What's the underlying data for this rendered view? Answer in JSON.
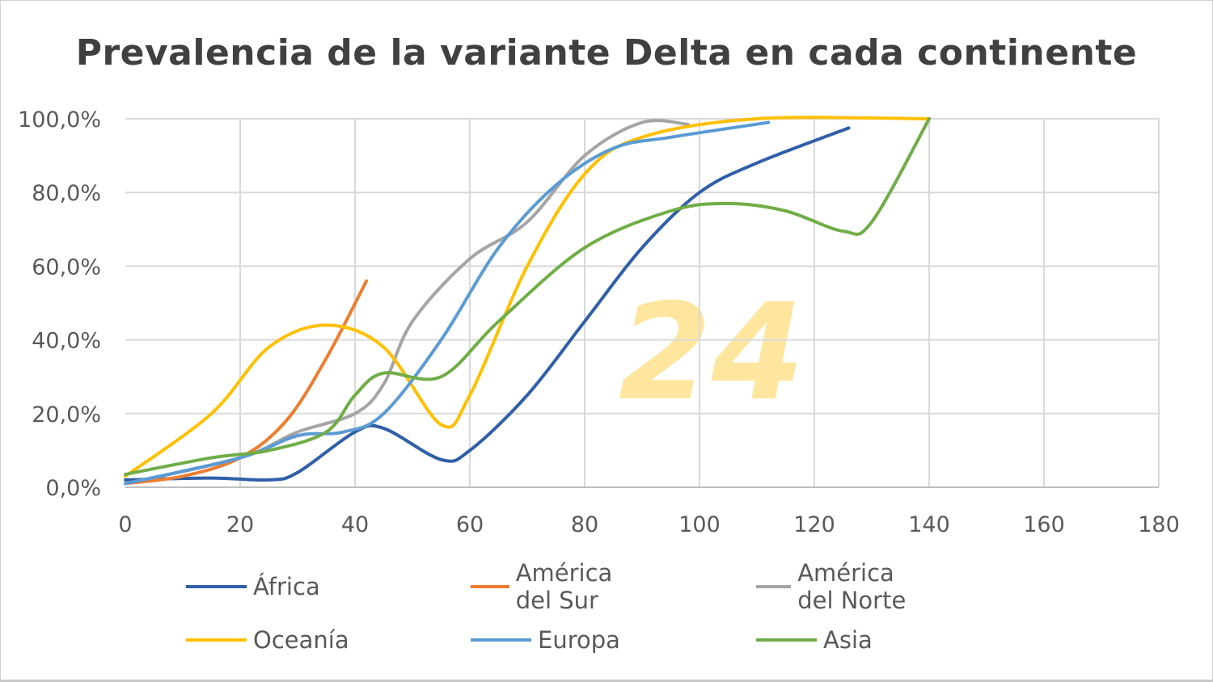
{
  "watermark": "24",
  "chart_data": {
    "type": "line",
    "title": "Prevalencia de la variante Delta en cada continente",
    "xlabel": "",
    "ylabel": "",
    "xlim": [
      0,
      180
    ],
    "ylim": [
      0,
      100
    ],
    "x_ticks": [
      "0",
      "20",
      "40",
      "60",
      "80",
      "100",
      "120",
      "140",
      "160",
      "180"
    ],
    "y_ticks": [
      "0,0%",
      "20,0%",
      "40,0%",
      "60,0%",
      "80,0%",
      "100,0%"
    ],
    "grid": true,
    "legend_position": "bottom",
    "series": [
      {
        "name": "África",
        "color": "#2F5FA8",
        "points": [
          [
            0,
            2
          ],
          [
            15,
            2.5
          ],
          [
            25,
            2
          ],
          [
            30,
            4
          ],
          [
            40,
            15
          ],
          [
            45,
            16
          ],
          [
            55,
            7.5
          ],
          [
            60,
            10
          ],
          [
            70,
            25
          ],
          [
            80,
            45
          ],
          [
            90,
            65
          ],
          [
            100,
            80
          ],
          [
            110,
            88
          ],
          [
            126,
            97.5
          ]
        ]
      },
      {
        "name": "América del Sur",
        "color": "#ED7D31",
        "points": [
          [
            0,
            1
          ],
          [
            10,
            3
          ],
          [
            20,
            8
          ],
          [
            28,
            18
          ],
          [
            35,
            35
          ],
          [
            42,
            56
          ]
        ]
      },
      {
        "name": "América del Norte",
        "color": "#A5A5A5",
        "points": [
          [
            0,
            1
          ],
          [
            20,
            8
          ],
          [
            30,
            15
          ],
          [
            40,
            20
          ],
          [
            45,
            28
          ],
          [
            50,
            45
          ],
          [
            60,
            62
          ],
          [
            70,
            72
          ],
          [
            80,
            90
          ],
          [
            90,
            99
          ],
          [
            98,
            98.5
          ]
        ]
      },
      {
        "name": "Oceanía",
        "color": "#FFC000",
        "points": [
          [
            0,
            3
          ],
          [
            15,
            20
          ],
          [
            25,
            38
          ],
          [
            35,
            44
          ],
          [
            45,
            38
          ],
          [
            55,
            17
          ],
          [
            60,
            25
          ],
          [
            70,
            60
          ],
          [
            80,
            85
          ],
          [
            90,
            95
          ],
          [
            110,
            100
          ],
          [
            140,
            100
          ]
        ]
      },
      {
        "name": "Europa",
        "color": "#5B9BD5",
        "points": [
          [
            0,
            1
          ],
          [
            20,
            8
          ],
          [
            30,
            14
          ],
          [
            38,
            15
          ],
          [
            45,
            20
          ],
          [
            55,
            40
          ],
          [
            65,
            65
          ],
          [
            75,
            82
          ],
          [
            85,
            92
          ],
          [
            95,
            95
          ],
          [
            112,
            99
          ]
        ]
      },
      {
        "name": "Asia",
        "color": "#70AD47",
        "points": [
          [
            0,
            3.5
          ],
          [
            15,
            8
          ],
          [
            25,
            10
          ],
          [
            35,
            15
          ],
          [
            40,
            25
          ],
          [
            45,
            31
          ],
          [
            55,
            30
          ],
          [
            65,
            45
          ],
          [
            80,
            65
          ],
          [
            95,
            75
          ],
          [
            105,
            77
          ],
          [
            115,
            75
          ],
          [
            125,
            69.5
          ],
          [
            130,
            72
          ],
          [
            140,
            100
          ]
        ]
      }
    ]
  }
}
